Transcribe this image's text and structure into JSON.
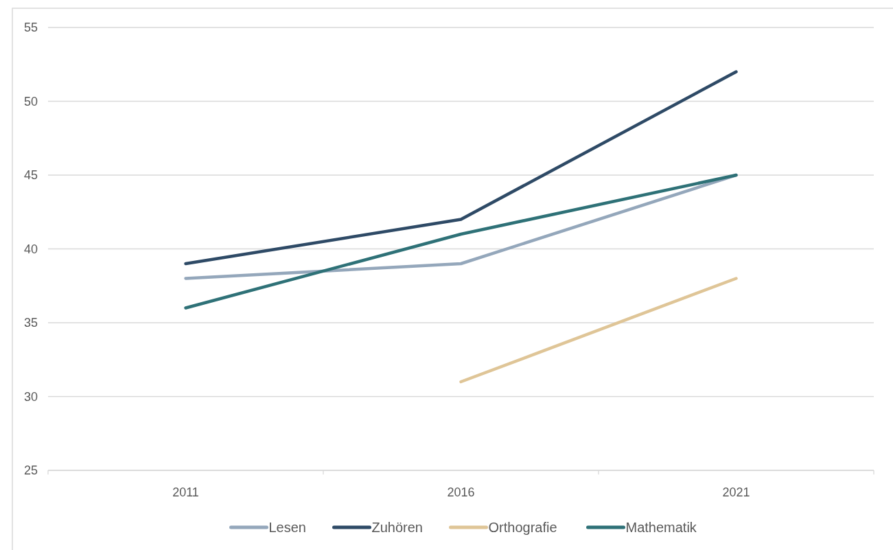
{
  "chart_data": {
    "type": "line",
    "categories": [
      "2011",
      "2016",
      "2021"
    ],
    "series": [
      {
        "name": "Lesen",
        "color": "#94a7bb",
        "values": [
          38,
          39,
          45
        ]
      },
      {
        "name": "Zuhören",
        "color": "#2e4a66",
        "values": [
          39,
          42,
          52
        ]
      },
      {
        "name": "Orthografie",
        "color": "#dfc597",
        "values": [
          null,
          31,
          38
        ]
      },
      {
        "name": "Mathematik",
        "color": "#2e7177",
        "values": [
          36,
          41,
          45
        ]
      }
    ],
    "ylim": [
      25,
      55
    ],
    "yticks": [
      25,
      30,
      35,
      40,
      45,
      50,
      55
    ],
    "grid": "y",
    "legend": "bottom",
    "marker": "none",
    "line_style": "solid"
  }
}
